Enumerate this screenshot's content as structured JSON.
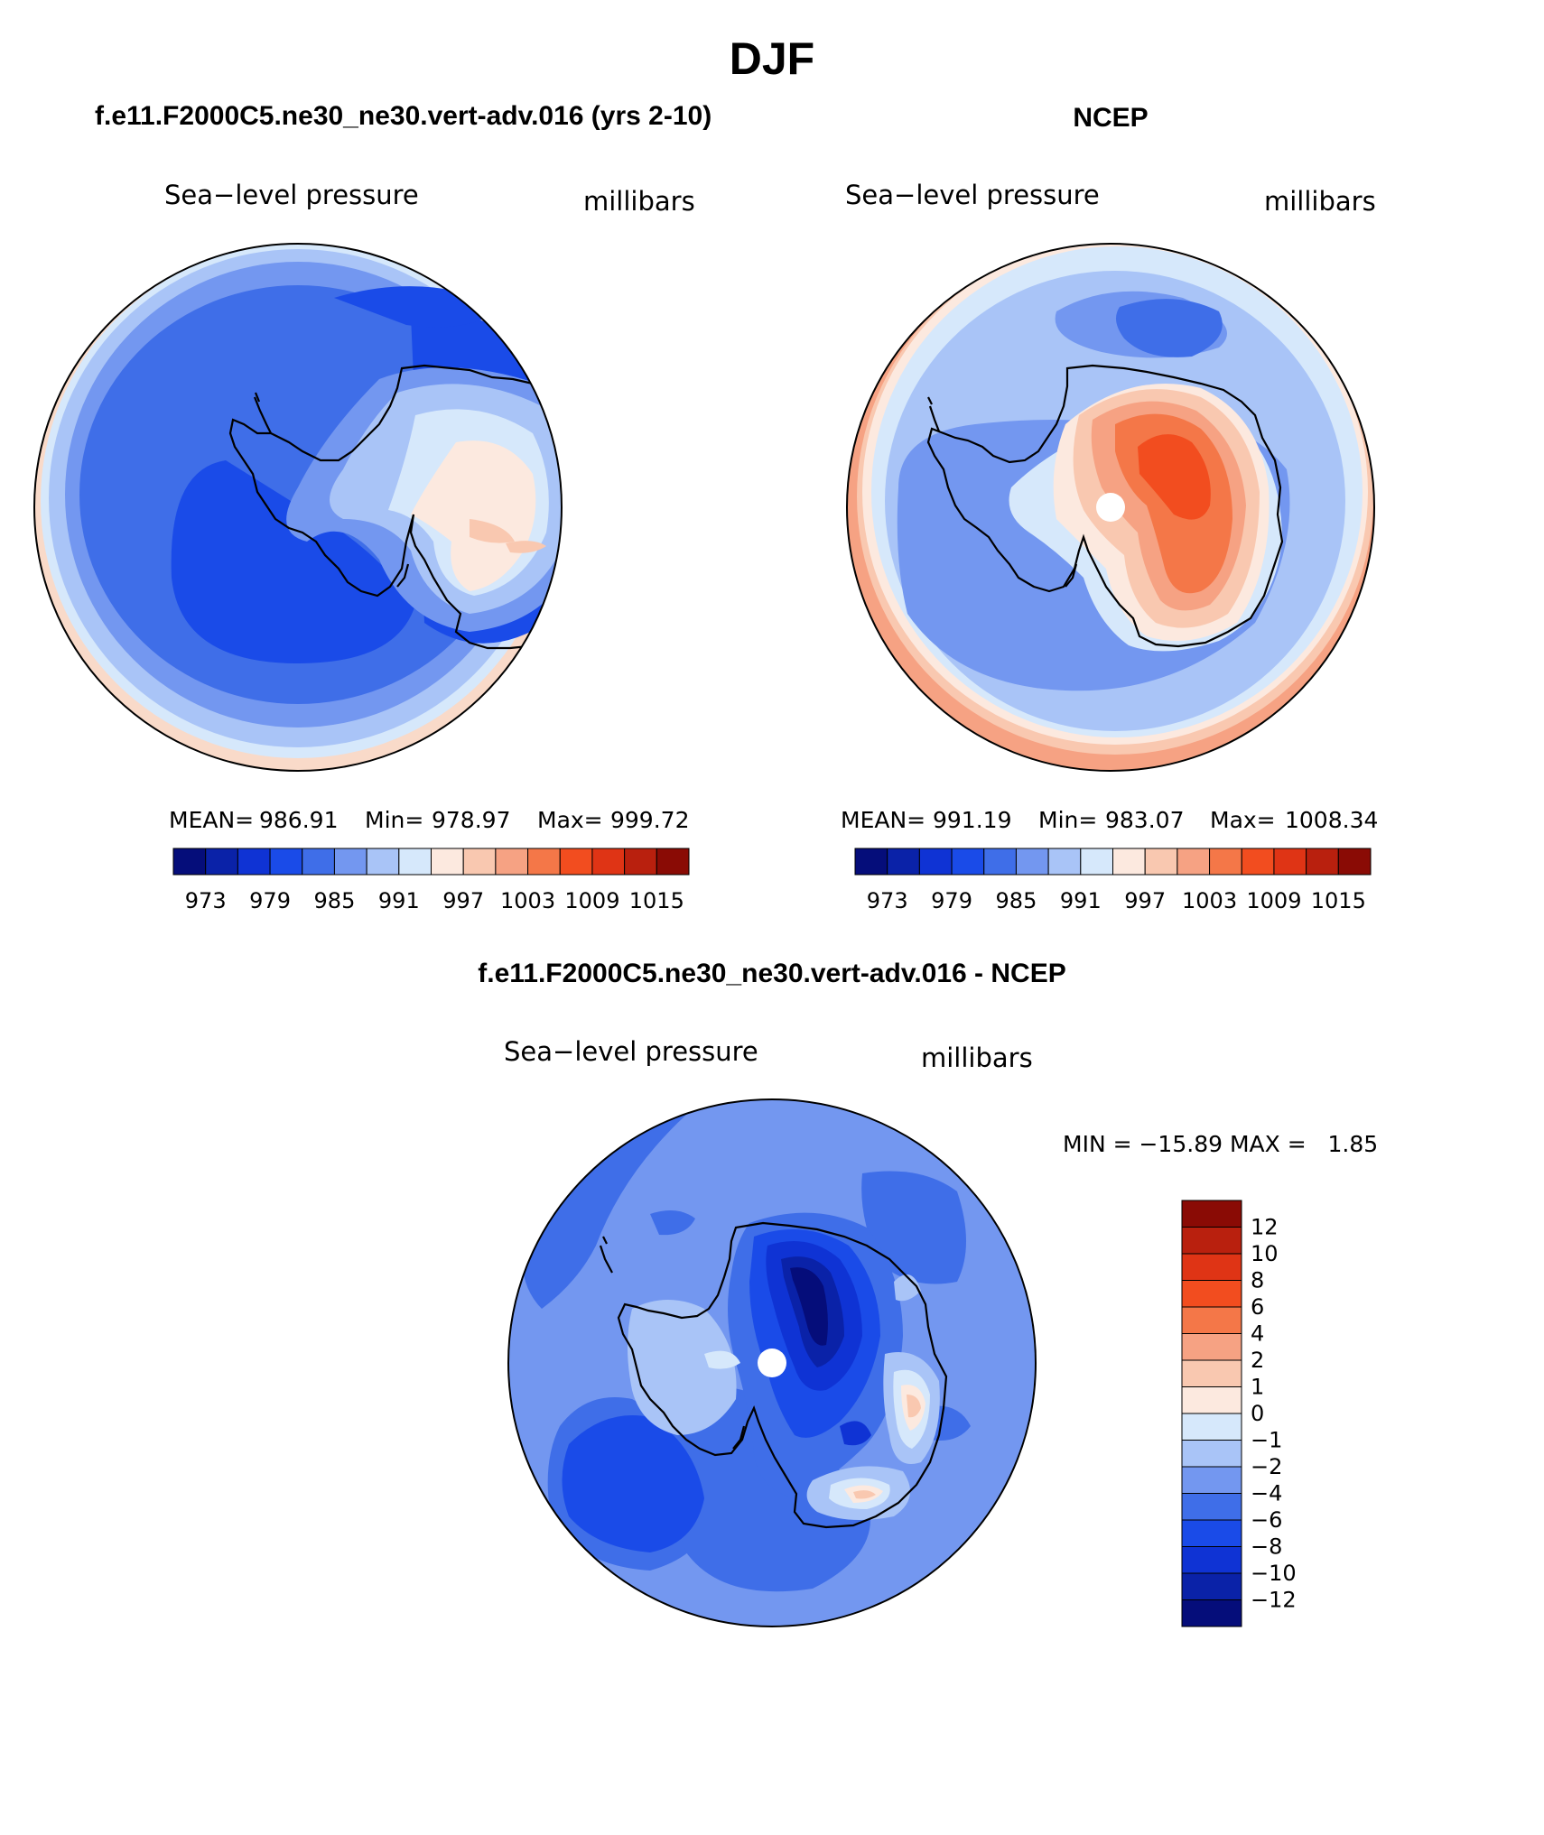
{
  "page": {
    "title": "DJF",
    "panel_left_header": "f.e11.F2000C5.ne30_ne30.vert-adv.016 (yrs 2-10)",
    "panel_right_header": "NCEP",
    "panel_diff_header": "f.e11.F2000C5.ne30_ne30.vert-adv.016 - NCEP"
  },
  "chart_data": [
    {
      "type": "heatmap",
      "name": "model",
      "left_label": "Sea−level pressure",
      "right_label": "millibars",
      "stats": {
        "mean_label": "MEAN=",
        "mean": "986.91",
        "min_label": "Min=",
        "min": "978.97",
        "max_label": "Max=",
        "max": "999.72"
      },
      "colorbar_ticks": [
        "973",
        "979",
        "985",
        "991",
        "997",
        "1003",
        "1009",
        "1015"
      ],
      "colorbar_colors": [
        "#050d7a",
        "#0a22a8",
        "#0f33d4",
        "#1a4be8",
        "#3f6ee8",
        "#7397f0",
        "#a9c4f7",
        "#d6e8fb",
        "#fce9df",
        "#f9c8b0",
        "#f6a283",
        "#f47748",
        "#f24d1f",
        "#df3415",
        "#b9200e",
        "#8a0b05"
      ],
      "projection": "south-polar-stereographic",
      "coastline": "Antarctica",
      "field_rings": [
        "#f9dac9",
        "#a9c4f7",
        "#7397f0",
        "#3f6ee8",
        "#3f6ee8",
        "#7397f0",
        "#a9c4f7",
        "#d6e8fb",
        "#fce9df"
      ]
    },
    {
      "type": "heatmap",
      "name": "ncep",
      "left_label": "Sea−level pressure",
      "right_label": "millibars",
      "stats": {
        "mean_label": "MEAN=",
        "mean": "991.19",
        "min_label": "Min=",
        "min": "983.07",
        "max_label": "Max=",
        "max": "1008.34"
      },
      "colorbar_ticks": [
        "973",
        "979",
        "985",
        "991",
        "997",
        "1003",
        "1009",
        "1015"
      ],
      "colorbar_colors": [
        "#050d7a",
        "#0a22a8",
        "#0f33d4",
        "#1a4be8",
        "#3f6ee8",
        "#7397f0",
        "#a9c4f7",
        "#d6e8fb",
        "#fce9df",
        "#f9c8b0",
        "#f6a283",
        "#f47748",
        "#f24d1f",
        "#df3415",
        "#b9200e",
        "#8a0b05"
      ],
      "projection": "south-polar-stereographic",
      "coastline": "Antarctica"
    },
    {
      "type": "heatmap",
      "name": "difference",
      "left_label": "Sea−level pressure",
      "right_label": "millibars",
      "minmax": "MIN = −15.89 MAX =   1.85",
      "colorbar_ticks": [
        "12",
        "10",
        "8",
        "6",
        "4",
        "2",
        "1",
        "0",
        "−1",
        "−2",
        "−4",
        "−6",
        "−8",
        "−10",
        "−12"
      ],
      "colorbar_colors": [
        "#8a0b05",
        "#b9200e",
        "#df3415",
        "#f24d1f",
        "#f47748",
        "#f6a283",
        "#f9c8b0",
        "#fce9df",
        "#d6e8fb",
        "#a9c4f7",
        "#7397f0",
        "#3f6ee8",
        "#1a4be8",
        "#0f33d4",
        "#0a22a8",
        "#050d7a"
      ],
      "projection": "south-polar-stereographic",
      "coastline": "Antarctica"
    }
  ]
}
